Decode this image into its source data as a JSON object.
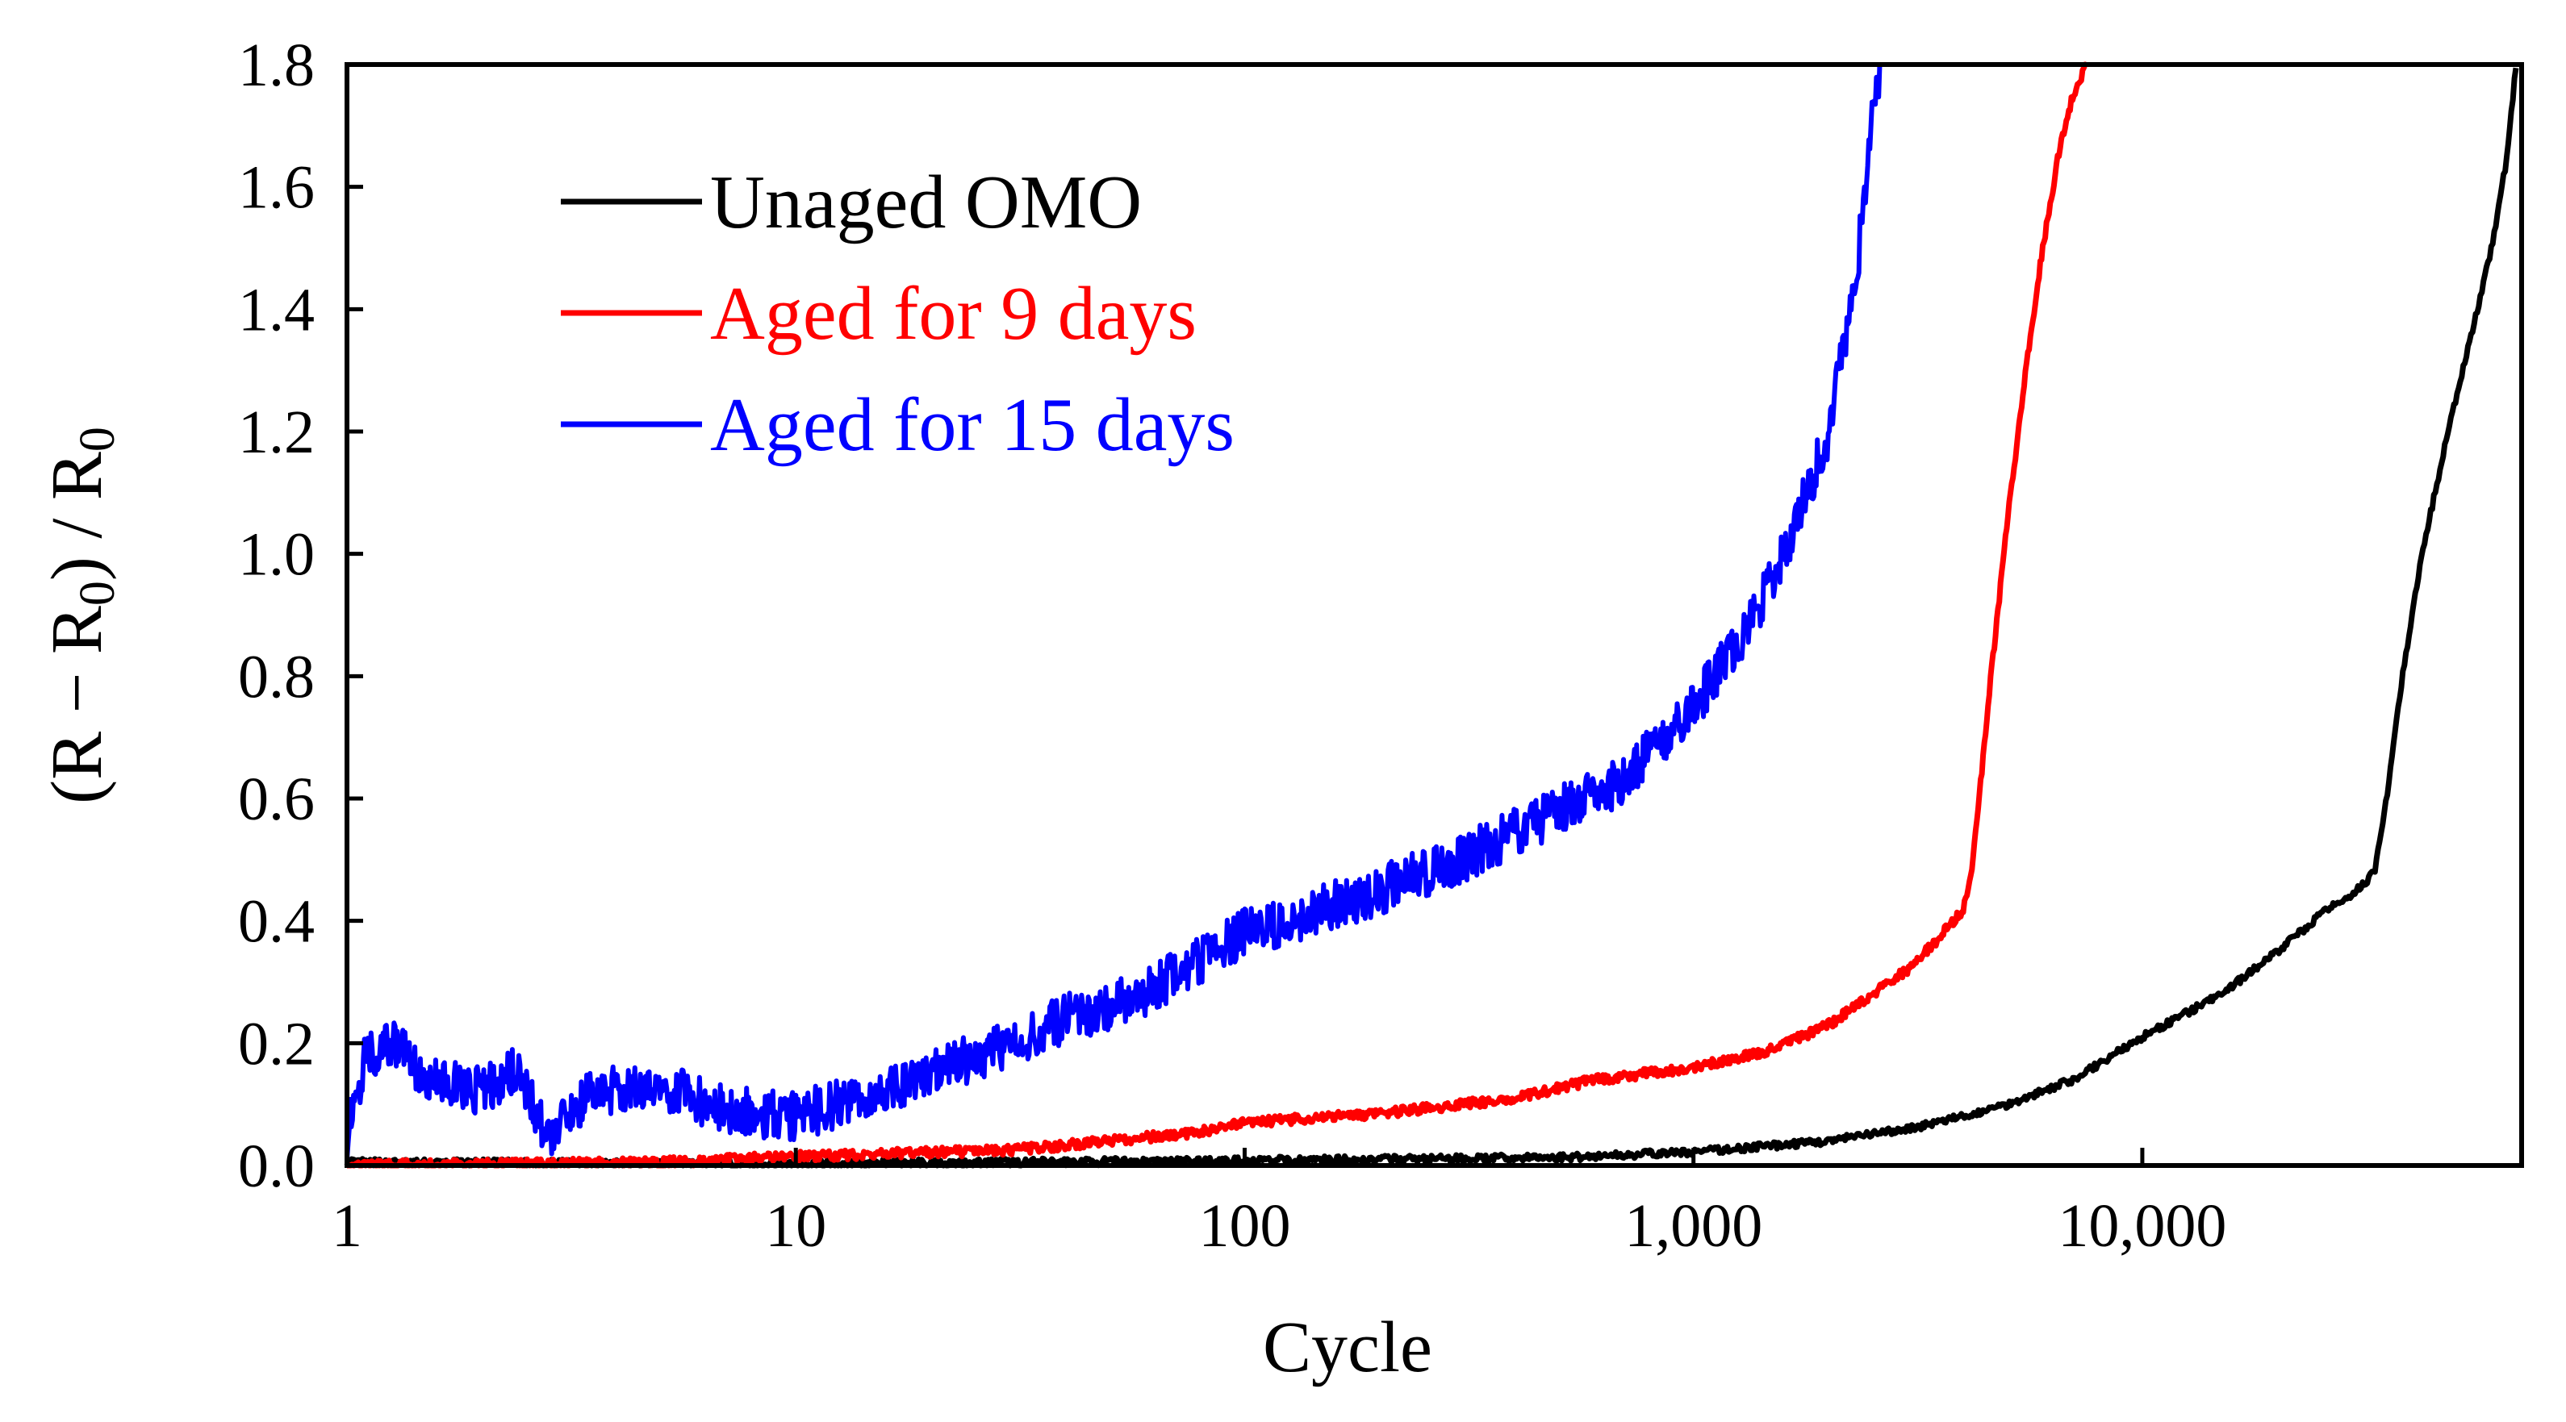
{
  "chart_data": {
    "type": "line",
    "title": "",
    "xlabel": "Cycle",
    "ylabel": {
      "prefix": "(R − R",
      "sub1": "0",
      "middle": ") / R",
      "sub2": "0"
    },
    "xscale": "log",
    "xlim": [
      1,
      70000
    ],
    "ylim": [
      0,
      1.8
    ],
    "x_ticks": [
      {
        "value": 1,
        "label": "1"
      },
      {
        "value": 10,
        "label": "10"
      },
      {
        "value": 100,
        "label": "100"
      },
      {
        "value": 1000,
        "label": "1,000"
      },
      {
        "value": 10000,
        "label": "10,000"
      }
    ],
    "y_ticks": [
      {
        "value": 0.0,
        "label": "0.0"
      },
      {
        "value": 0.2,
        "label": "0.2"
      },
      {
        "value": 0.4,
        "label": "0.4"
      },
      {
        "value": 0.6,
        "label": "0.6"
      },
      {
        "value": 0.8,
        "label": "0.8"
      },
      {
        "value": 1.0,
        "label": "1.0"
      },
      {
        "value": 1.2,
        "label": "1.2"
      },
      {
        "value": 1.4,
        "label": "1.4"
      },
      {
        "value": 1.6,
        "label": "1.6"
      },
      {
        "value": 1.8,
        "label": "1.8"
      }
    ],
    "grid": false,
    "legend_position": "top-left",
    "series": [
      {
        "name": "Unaged OMO",
        "color": "#000000",
        "noise": 0.006,
        "points": [
          [
            1,
            0.005
          ],
          [
            10,
            0.003
          ],
          [
            100,
            0.008
          ],
          [
            500,
            0.013
          ],
          [
            1000,
            0.022
          ],
          [
            2000,
            0.04
          ],
          [
            3000,
            0.06
          ],
          [
            4000,
            0.08
          ],
          [
            5000,
            0.1
          ],
          [
            7000,
            0.14
          ],
          [
            10000,
            0.21
          ],
          [
            15000,
            0.28
          ],
          [
            20000,
            0.35
          ],
          [
            25000,
            0.41
          ],
          [
            30000,
            0.45
          ],
          [
            33000,
            0.48
          ],
          [
            35000,
            0.6
          ],
          [
            38000,
            0.8
          ],
          [
            42000,
            1.0
          ],
          [
            48000,
            1.2
          ],
          [
            55000,
            1.38
          ],
          [
            60000,
            1.5
          ],
          [
            65000,
            1.65
          ],
          [
            68000,
            1.8
          ]
        ]
      },
      {
        "name": "Aged for 9 days",
        "color": "#ff0000",
        "noise": 0.008,
        "points": [
          [
            1,
            0.0
          ],
          [
            5,
            0.005
          ],
          [
            10,
            0.015
          ],
          [
            30,
            0.025
          ],
          [
            50,
            0.04
          ],
          [
            80,
            0.055
          ],
          [
            100,
            0.07
          ],
          [
            200,
            0.085
          ],
          [
            400,
            0.11
          ],
          [
            600,
            0.14
          ],
          [
            1000,
            0.16
          ],
          [
            1500,
            0.19
          ],
          [
            2000,
            0.23
          ],
          [
            2500,
            0.28
          ],
          [
            3000,
            0.32
          ],
          [
            3500,
            0.37
          ],
          [
            4000,
            0.42
          ],
          [
            4200,
            0.5
          ],
          [
            4600,
            0.8
          ],
          [
            5000,
            1.05
          ],
          [
            5500,
            1.3
          ],
          [
            6000,
            1.5
          ],
          [
            6500,
            1.65
          ],
          [
            7000,
            1.75
          ],
          [
            7500,
            1.8
          ]
        ]
      },
      {
        "name": "Aged for 15 days",
        "color": "#0000ff",
        "noise": 0.04,
        "points": [
          [
            1,
            0.05
          ],
          [
            1.1,
            0.18
          ],
          [
            1.3,
            0.2
          ],
          [
            1.5,
            0.14
          ],
          [
            2,
            0.12
          ],
          [
            2.4,
            0.16
          ],
          [
            2.8,
            0.04
          ],
          [
            3.5,
            0.12
          ],
          [
            5,
            0.13
          ],
          [
            7,
            0.09
          ],
          [
            10,
            0.08
          ],
          [
            15,
            0.12
          ],
          [
            20,
            0.15
          ],
          [
            30,
            0.2
          ],
          [
            40,
            0.24
          ],
          [
            60,
            0.28
          ],
          [
            100,
            0.38
          ],
          [
            150,
            0.42
          ],
          [
            200,
            0.45
          ],
          [
            300,
            0.5
          ],
          [
            500,
            0.58
          ],
          [
            700,
            0.63
          ],
          [
            1000,
            0.75
          ],
          [
            1300,
            0.87
          ],
          [
            1600,
            1.0
          ],
          [
            2000,
            1.2
          ],
          [
            2300,
            1.45
          ],
          [
            2500,
            1.7
          ],
          [
            2600,
            1.8
          ]
        ]
      }
    ]
  }
}
